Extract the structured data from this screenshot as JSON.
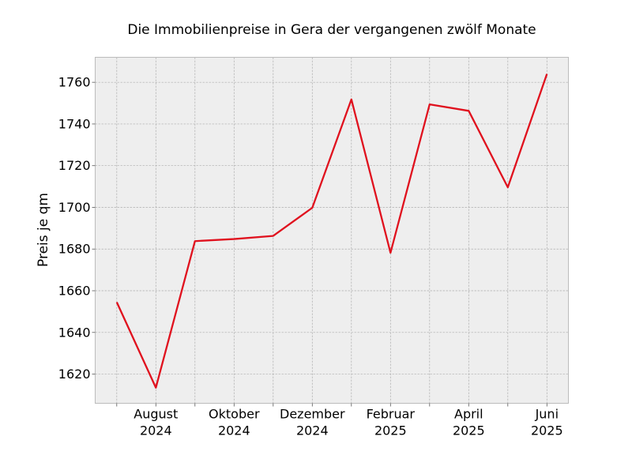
{
  "chart_data": {
    "type": "line",
    "title": "Die Immobilienpreise in Gera der vergangenen zwölf Monate",
    "xlabel": "",
    "ylabel": "Preis je qm",
    "x": [
      "2024-07",
      "2024-08",
      "2024-09",
      "2024-10",
      "2024-11",
      "2024-12",
      "2025-01",
      "2025-02",
      "2025-03",
      "2025-04",
      "2025-05",
      "2025-06"
    ],
    "x_tick_labels": [
      {
        "month": "2024-08",
        "line1": "August",
        "line2": "2024"
      },
      {
        "month": "2024-10",
        "line1": "Oktober",
        "line2": "2024"
      },
      {
        "month": "2024-12",
        "line1": "Dezember",
        "line2": "2024"
      },
      {
        "month": "2025-02",
        "line1": "Februar",
        "line2": "2025"
      },
      {
        "month": "2025-04",
        "line1": "April",
        "line2": "2025"
      },
      {
        "month": "2025-06",
        "line1": "Juni",
        "line2": "2025"
      }
    ],
    "series": [
      {
        "values": [
          1654.5,
          1613.5,
          1683.8,
          1684.8,
          1686.3,
          1699.8,
          1751.8,
          1678.2,
          1749.4,
          1746.3,
          1709.6,
          1764.0
        ],
        "color": "#e0111e"
      }
    ],
    "ylim": [
      1606,
      1772
    ],
    "yticks": [
      1620,
      1640,
      1660,
      1680,
      1700,
      1720,
      1740,
      1760
    ],
    "grid": true,
    "plot_background": "#eeeeee",
    "grid_color": "#b0b0b0"
  }
}
